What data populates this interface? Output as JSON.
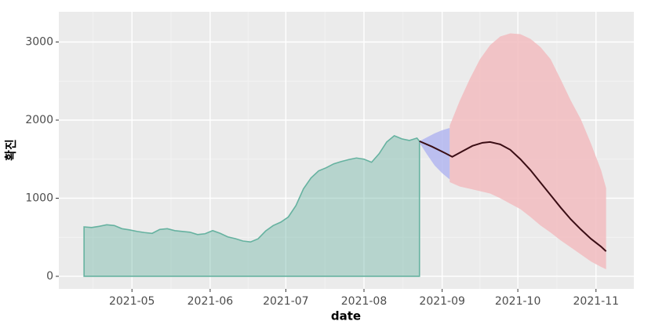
{
  "chart_data": {
    "type": "area",
    "x_label": "date",
    "y_label": "확진",
    "xlim": [
      92,
      320
    ],
    "ylim": [
      -161,
      3387
    ],
    "xticks": [
      {
        "value": 121,
        "label": "2021-05"
      },
      {
        "value": 152,
        "label": "2021-06"
      },
      {
        "value": 182,
        "label": "2021-07"
      },
      {
        "value": 213,
        "label": "2021-08"
      },
      {
        "value": 244,
        "label": "2021-09"
      },
      {
        "value": 274,
        "label": "2021-10"
      },
      {
        "value": 305,
        "label": "2021-11"
      }
    ],
    "yticks": [
      0,
      1000,
      2000,
      3000
    ],
    "xminor": [
      105.5,
      136.5,
      167,
      197.5,
      228.5,
      259,
      289.5
    ],
    "yminor": [
      500,
      1500,
      2500
    ],
    "grid": true,
    "series": [
      {
        "kind": "area",
        "color": "#66b2a0",
        "x": [
          102,
          105,
          108,
          111,
          114,
          117,
          120,
          123,
          126,
          129,
          132,
          135,
          138,
          141,
          144,
          147,
          150,
          153,
          156,
          159,
          162,
          165,
          168,
          171,
          174,
          177,
          180,
          183,
          186,
          189,
          192,
          195,
          198,
          201,
          204,
          207,
          210,
          213,
          216,
          219,
          222,
          225,
          228,
          231,
          234,
          235
        ],
        "values": [
          633,
          625,
          640,
          660,
          650,
          610,
          595,
          575,
          560,
          550,
          600,
          610,
          585,
          575,
          565,
          535,
          545,
          585,
          550,
          505,
          482,
          452,
          440,
          480,
          580,
          650,
          693,
          760,
          905,
          1120,
          1260,
          1350,
          1390,
          1440,
          1470,
          1495,
          1515,
          1500,
          1460,
          1570,
          1720,
          1800,
          1760,
          1740,
          1770,
          1730
        ]
      },
      {
        "kind": "band",
        "color": "#b3b6f0",
        "x": [
          235,
          238,
          241,
          244,
          247
        ],
        "upper": [
          1730,
          1780,
          1830,
          1870,
          1900
        ],
        "lower": [
          1710,
          1560,
          1420,
          1320,
          1240
        ]
      },
      {
        "kind": "band",
        "color": "#f2bcc0",
        "x": [
          247,
          251,
          255,
          259,
          263,
          267,
          271,
          275,
          279,
          283,
          287,
          291,
          295,
          299,
          303,
          307,
          309
        ],
        "upper": [
          1930,
          2250,
          2530,
          2780,
          2960,
          3070,
          3110,
          3100,
          3040,
          2935,
          2780,
          2520,
          2250,
          2010,
          1700,
          1360,
          1130
        ],
        "lower": [
          1206,
          1150,
          1120,
          1090,
          1060,
          1000,
          930,
          860,
          760,
          650,
          560,
          460,
          370,
          280,
          190,
          120,
          90
        ]
      },
      {
        "kind": "line",
        "color": "#3a0d14",
        "x": [
          235,
          240,
          245,
          248,
          252,
          256,
          260,
          263,
          267,
          271,
          275,
          279,
          283,
          287,
          291,
          295,
          299,
          303,
          307,
          309
        ],
        "values": [
          1730,
          1660,
          1580,
          1530,
          1600,
          1670,
          1710,
          1720,
          1690,
          1620,
          1500,
          1360,
          1200,
          1040,
          880,
          730,
          600,
          480,
          380,
          320
        ]
      }
    ]
  }
}
